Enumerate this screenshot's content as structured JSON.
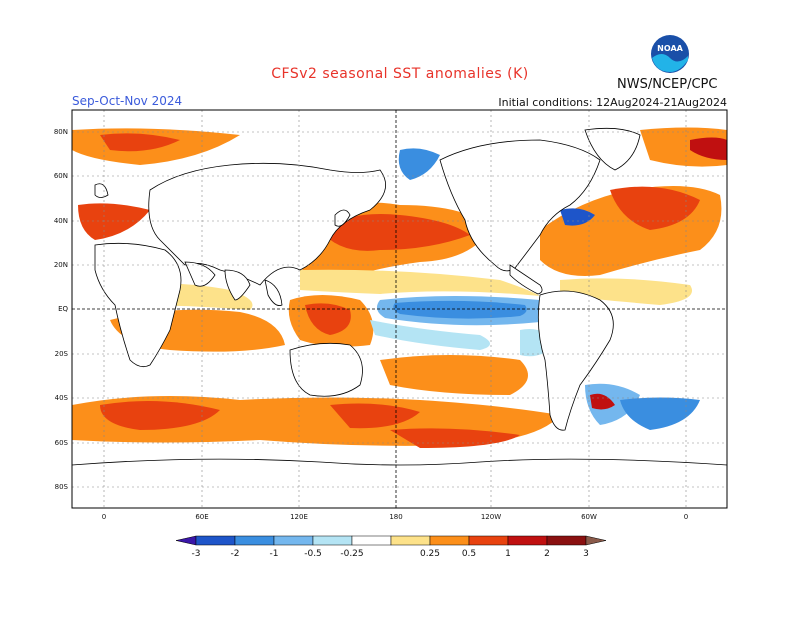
{
  "title": "CFSv2 seasonal SST anomalies (K)",
  "season": "Sep-Oct-Nov 2024",
  "initial_conditions": "Initial conditions: 12Aug2024-21Aug2024",
  "agency": "NWS/NCEP/CPC",
  "logo_text": "NOAA",
  "lat_labels": [
    "80N",
    "60N",
    "40N",
    "20N",
    "EQ",
    "20S",
    "40S",
    "60S",
    "80S"
  ],
  "lat_values": [
    80,
    60,
    40,
    20,
    0,
    -20,
    -40,
    -60,
    -80
  ],
  "lon_labels": [
    "0",
    "60E",
    "120E",
    "180",
    "120W",
    "60W",
    "0"
  ],
  "lon_values": [
    0,
    60,
    120,
    180,
    240,
    300,
    360
  ],
  "colorbar": {
    "ticks": [
      "-3",
      "-2",
      "-1",
      "-0.5",
      "-0.25",
      "0.25",
      "0.5",
      "1",
      "2",
      "3"
    ],
    "colors": [
      "#3a16a8",
      "#1e55c9",
      "#3a8ee0",
      "#74b7ee",
      "#b4e4f4",
      "#ffffff",
      "#fde28a",
      "#fc8f1a",
      "#e8420f",
      "#c01010",
      "#8a1010",
      "#8a5a4a"
    ]
  },
  "colors": {
    "title": "#e8332a",
    "season": "#3b5bdb",
    "land": "#ffffff",
    "coast": "#000000"
  }
}
